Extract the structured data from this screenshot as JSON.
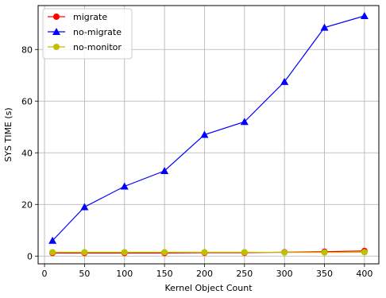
{
  "chart_data": {
    "type": "line",
    "xlabel": "Kernel Object Count",
    "ylabel": "SYS TIME (s)",
    "xlim": [
      -8,
      418
    ],
    "ylim": [
      -3,
      97
    ],
    "xticks": [
      0,
      50,
      100,
      150,
      200,
      250,
      300,
      350,
      400
    ],
    "yticks": [
      0,
      20,
      40,
      60,
      80
    ],
    "x": [
      10,
      50,
      100,
      150,
      200,
      250,
      300,
      350,
      400
    ],
    "grid": true,
    "legend_position": "top-left",
    "series": [
      {
        "name": "migrate",
        "color": "#ff0000",
        "marker": "circle",
        "values": [
          1.2,
          1.2,
          1.2,
          1.2,
          1.3,
          1.3,
          1.5,
          1.7,
          2.0
        ]
      },
      {
        "name": "no-migrate",
        "color": "#0000ff",
        "marker": "triangle",
        "values": [
          6,
          19,
          27,
          33,
          47,
          52,
          67.5,
          88.5,
          93
        ]
      },
      {
        "name": "no-monitor",
        "color": "#bfbf00",
        "marker": "circle",
        "values": [
          1.5,
          1.5,
          1.5,
          1.5,
          1.5,
          1.5,
          1.4,
          1.4,
          1.5
        ]
      }
    ]
  }
}
